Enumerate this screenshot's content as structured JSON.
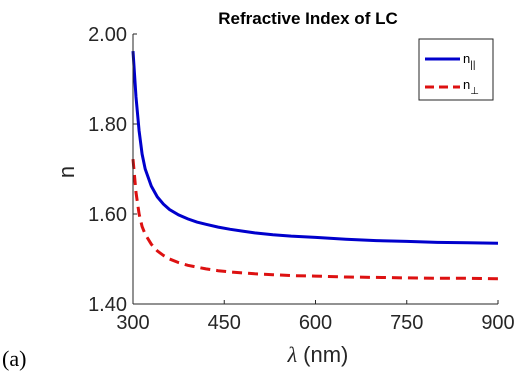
{
  "panel_label": "(a)",
  "chart_data": {
    "type": "line",
    "title": "Refractive Index of LC",
    "xlabel_symbol": "λ",
    "xlabel_unit": "(nm)",
    "ylabel": "n",
    "xlim": [
      300,
      900
    ],
    "ylim": [
      1.4,
      2.0
    ],
    "xticks": [
      300,
      450,
      600,
      750,
      900
    ],
    "yticks": [
      "1.40",
      "1.60",
      "1.80",
      "2.00"
    ],
    "legend_position": "top-right",
    "grid": false,
    "series": [
      {
        "name_base": "n",
        "name_sub": "||",
        "color": "#0000cc",
        "style": "solid",
        "x": [
          300,
          305,
          310,
          315,
          320,
          330,
          340,
          350,
          360,
          375,
          390,
          405,
          420,
          440,
          460,
          480,
          500,
          530,
          560,
          600,
          650,
          700,
          750,
          800,
          850,
          900
        ],
        "y": [
          1.962,
          1.86,
          1.785,
          1.733,
          1.7,
          1.662,
          1.638,
          1.622,
          1.61,
          1.598,
          1.589,
          1.582,
          1.577,
          1.571,
          1.566,
          1.562,
          1.558,
          1.554,
          1.551,
          1.548,
          1.544,
          1.541,
          1.539,
          1.537,
          1.536,
          1.535
        ]
      },
      {
        "name_base": "n",
        "name_sub": "⊥",
        "color": "#dd1111",
        "style": "dashed",
        "x": [
          300,
          305,
          310,
          315,
          320,
          330,
          340,
          350,
          360,
          375,
          390,
          405,
          420,
          440,
          460,
          480,
          500,
          530,
          560,
          600,
          650,
          700,
          750,
          800,
          850,
          900
        ],
        "y": [
          1.722,
          1.648,
          1.6,
          1.572,
          1.555,
          1.533,
          1.518,
          1.508,
          1.5,
          1.492,
          1.486,
          1.482,
          1.478,
          1.474,
          1.471,
          1.469,
          1.467,
          1.465,
          1.463,
          1.462,
          1.46,
          1.459,
          1.458,
          1.457,
          1.457,
          1.456
        ]
      }
    ]
  }
}
